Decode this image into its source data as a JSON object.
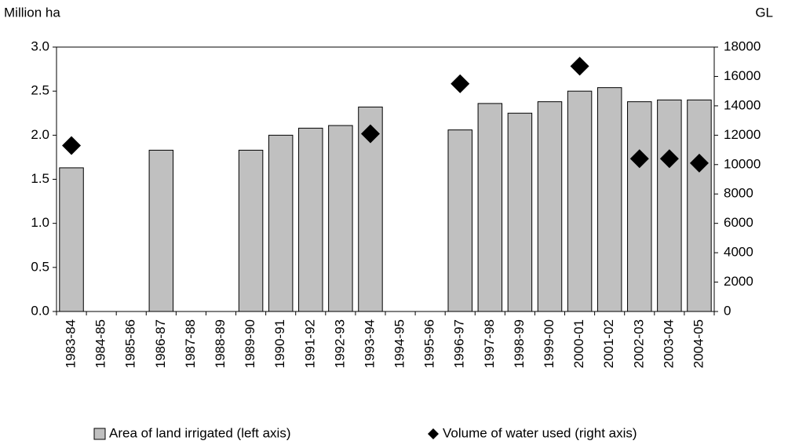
{
  "chart_data": {
    "type": "bar",
    "y_label": "Million ha",
    "y2_label": "GL",
    "categories": [
      "1983-84",
      "1984-85",
      "1985-86",
      "1986-87",
      "1987-88",
      "1988-89",
      "1989-90",
      "1990-91",
      "1991-92",
      "1992-93",
      "1993-94",
      "1994-95",
      "1995-96",
      "1996-97",
      "1997-98",
      "1998-99",
      "1999-00",
      "2000-01",
      "2001-02",
      "2002-03",
      "2003-04",
      "2004-05"
    ],
    "series": [
      {
        "name": "Area of land irrigated (left axis)",
        "type": "bar",
        "color": "#c0c0c0",
        "values": [
          1.63,
          null,
          null,
          1.83,
          null,
          null,
          1.83,
          2.0,
          2.08,
          2.11,
          2.32,
          null,
          null,
          2.06,
          2.36,
          2.25,
          2.38,
          2.5,
          2.54,
          2.38,
          2.4,
          2.4
        ]
      },
      {
        "name": "Volume of water used (right axis)",
        "type": "scatter",
        "axis": "y2",
        "color": "#000000",
        "values": [
          11300,
          null,
          null,
          null,
          null,
          null,
          null,
          null,
          null,
          null,
          12100,
          null,
          null,
          15500,
          null,
          null,
          null,
          16700,
          null,
          10400,
          10400,
          10100
        ]
      }
    ],
    "ylim": [
      0,
      3
    ],
    "yticks": [
      {
        "value": 0,
        "label": "0.0"
      },
      {
        "value": 0.5,
        "label": "0.5"
      },
      {
        "value": 1,
        "label": "1.0"
      },
      {
        "value": 1.5,
        "label": "1.5"
      },
      {
        "value": 2,
        "label": "2.0"
      },
      {
        "value": 2.5,
        "label": "2.5"
      },
      {
        "value": 3,
        "label": "3.0"
      }
    ],
    "y2lim": [
      0,
      18000
    ],
    "y2ticks": [
      0,
      2000,
      4000,
      6000,
      8000,
      10000,
      12000,
      14000,
      16000,
      18000
    ],
    "grid": false,
    "legend": "bottom"
  }
}
